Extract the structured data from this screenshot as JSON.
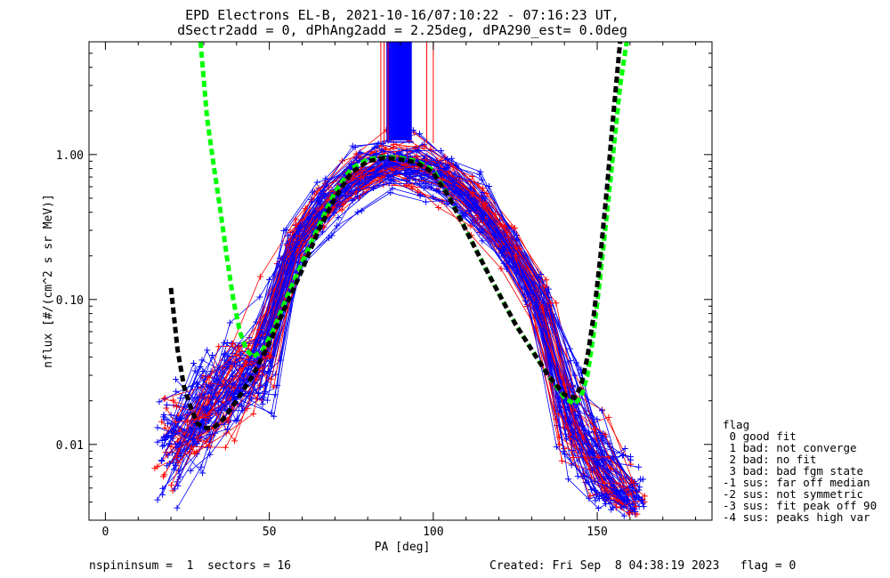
{
  "chart_data": {
    "type": "line",
    "title": "EPD Electrons EL-B, 2021-10-16/07:10:22 - 07:16:23 UT,",
    "subtitle": "dSectr2add = 0, dPhAng2add = 2.25deg, dPA290_est=   0.0deg",
    "xlabel": "PA [deg]",
    "ylabel": "nflux [#/(cm^2 s sr MeV)]",
    "xlim": [
      -5,
      185
    ],
    "ylim": [
      0.003,
      6.0
    ],
    "yscale": "log",
    "xticks": [
      {
        "value": 0,
        "label": "0"
      },
      {
        "value": 50,
        "label": "50"
      },
      {
        "value": 100,
        "label": "100"
      },
      {
        "value": 150,
        "label": "150"
      }
    ],
    "yticks": [
      {
        "value": 0.01,
        "label": "0.01"
      },
      {
        "value": 0.1,
        "label": "0.10"
      },
      {
        "value": 1.0,
        "label": "1.00"
      }
    ],
    "colors": {
      "red": "#ff0000",
      "blue": "#0000ff",
      "green": "#00ff00",
      "black": "#000000"
    },
    "series": [
      {
        "color": "#00ff00",
        "style": "dashed-thick",
        "x": [
          29,
          31,
          33,
          35,
          37,
          39,
          41,
          43,
          45,
          48,
          51,
          55,
          60,
          65,
          70,
          75,
          80,
          85,
          90,
          95,
          100,
          105,
          110,
          115,
          120,
          125,
          130,
          135,
          140,
          143,
          145,
          147,
          149,
          151,
          153,
          155,
          157,
          159
        ],
        "y": [
          6.0,
          1.8,
          0.85,
          0.42,
          0.2,
          0.1,
          0.06,
          0.045,
          0.04,
          0.045,
          0.06,
          0.1,
          0.18,
          0.32,
          0.55,
          0.8,
          0.93,
          0.96,
          0.95,
          0.9,
          0.78,
          0.5,
          0.3,
          0.18,
          0.11,
          0.068,
          0.045,
          0.03,
          0.021,
          0.019,
          0.021,
          0.03,
          0.06,
          0.15,
          0.4,
          1.1,
          3.0,
          6.0
        ]
      },
      {
        "color": "#000000",
        "style": "dashed-thick",
        "x": [
          20,
          22,
          24,
          26,
          28,
          30,
          33,
          36,
          40,
          45,
          50,
          55,
          60,
          65,
          70,
          75,
          80,
          85,
          90,
          95,
          100,
          105,
          110,
          115,
          120,
          125,
          130,
          135,
          140,
          143,
          145,
          147,
          149,
          151,
          153,
          155,
          157
        ],
        "y": [
          0.12,
          0.045,
          0.025,
          0.018,
          0.014,
          0.013,
          0.013,
          0.015,
          0.02,
          0.03,
          0.05,
          0.09,
          0.16,
          0.3,
          0.5,
          0.75,
          0.9,
          0.95,
          0.93,
          0.88,
          0.75,
          0.5,
          0.3,
          0.18,
          0.11,
          0.068,
          0.045,
          0.03,
          0.022,
          0.021,
          0.025,
          0.04,
          0.08,
          0.2,
          0.6,
          2.0,
          6.0
        ]
      }
    ],
    "legend": {
      "placement": "right",
      "title": "flag",
      "entries": [
        " 0 good fit",
        " 1 bad: not converge",
        " 2 bad: no fit",
        " 3 bad: bad fgm state",
        "-1 sus: far off median",
        "-2 sus: not symmetric",
        "-3 sus: fit peak off 90",
        "-4 sus: peaks high var"
      ]
    },
    "footer": {
      "left": "nspininsum =  1  sectors = 16",
      "right": "Created: Fri Sep  8 04:38:19 2023   flag = 0"
    }
  }
}
